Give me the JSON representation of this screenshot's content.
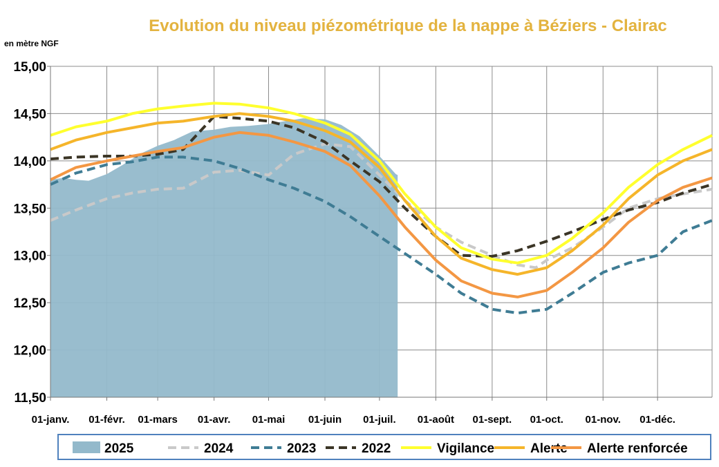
{
  "chart_data": {
    "type": "line",
    "title": "Evolution du niveau piézométrique  de la nappe à Béziers  - Clairac",
    "ylabel": "en mètre NGF",
    "ylim": [
      11.5,
      15.0
    ],
    "yticks": [
      "11,50",
      "12,00",
      "12,50",
      "13,00",
      "13,50",
      "14,00",
      "14,50",
      "15,00"
    ],
    "x_range": [
      "01-janv.",
      "31-déc."
    ],
    "xticks": [
      "01-janv.",
      "01-févr.",
      "01-mars",
      "01-avr.",
      "01-mai",
      "01-juin",
      "01-juil.",
      "01-août",
      "01-sept.",
      "01-oct.",
      "01-nov.",
      "01-déc."
    ],
    "grid": "vertical and horizontal",
    "legend_position": "bottom",
    "series": [
      {
        "name": "2025",
        "style": "area",
        "color": "#93b9cb",
        "points": [
          [
            "01-janv.",
            13.8
          ],
          [
            "08-janv.",
            13.82
          ],
          [
            "15-janv.",
            13.8
          ],
          [
            "22-janv.",
            13.79
          ],
          [
            "01-févr.",
            13.86
          ],
          [
            "10-févr.",
            13.96
          ],
          [
            "20-févr.",
            14.08
          ],
          [
            "01-mars",
            14.16
          ],
          [
            "10-mars",
            14.22
          ],
          [
            "20-mars",
            14.31
          ],
          [
            "01-avr.",
            14.33
          ],
          [
            "10-avr.",
            14.36
          ],
          [
            "20-avr.",
            14.37
          ],
          [
            "01-mai",
            14.39
          ],
          [
            "10-mai",
            14.42
          ],
          [
            "20-mai",
            14.45
          ],
          [
            "01-juin",
            14.44
          ],
          [
            "10-juin",
            14.38
          ],
          [
            "20-juin",
            14.26
          ],
          [
            "01-juil.",
            14.05
          ],
          [
            "10-juil.",
            13.86
          ],
          [
            "11-juil.",
            13.85
          ]
        ]
      },
      {
        "name": "2024",
        "style": "dashed",
        "color": "#c9c9c9",
        "points": [
          [
            "01-janv.",
            13.37
          ],
          [
            "15-janv.",
            13.48
          ],
          [
            "01-févr.",
            13.6
          ],
          [
            "15-févr.",
            13.66
          ],
          [
            "01-mars",
            13.7
          ],
          [
            "15-mars",
            13.71
          ],
          [
            "01-avr.",
            13.88
          ],
          [
            "15-avr.",
            13.9
          ],
          [
            "01-mai",
            13.85
          ],
          [
            "15-mai",
            14.07
          ],
          [
            "01-juin",
            14.18
          ],
          [
            "15-juin",
            14.15
          ],
          [
            "01-juil.",
            13.85
          ],
          [
            "15-juil.",
            13.58
          ],
          [
            "01-août",
            13.3
          ],
          [
            "15-août",
            13.14
          ],
          [
            "01-sept.",
            13.0
          ],
          [
            "15-sept.",
            12.9
          ],
          [
            "25-sept.",
            12.87
          ],
          [
            "01-oct.",
            12.95
          ],
          [
            "15-oct.",
            13.08
          ],
          [
            "01-nov.",
            13.3
          ],
          [
            "15-nov.",
            13.5
          ],
          [
            "01-déc.",
            13.6
          ],
          [
            "15-déc.",
            13.65
          ],
          [
            "31-déc.",
            13.7
          ]
        ]
      },
      {
        "name": "2023",
        "style": "dashed",
        "color": "#3f7c94",
        "points": [
          [
            "01-janv.",
            13.75
          ],
          [
            "15-janv.",
            13.87
          ],
          [
            "01-févr.",
            13.96
          ],
          [
            "15-févr.",
            13.99
          ],
          [
            "01-mars",
            14.04
          ],
          [
            "15-mars",
            14.04
          ],
          [
            "01-avr.",
            14.0
          ],
          [
            "15-avr.",
            13.92
          ],
          [
            "01-mai",
            13.8
          ],
          [
            "15-mai",
            13.71
          ],
          [
            "01-juin",
            13.57
          ],
          [
            "15-juin",
            13.41
          ],
          [
            "01-juil.",
            13.2
          ],
          [
            "15-juil.",
            13.02
          ],
          [
            "01-août",
            12.8
          ],
          [
            "15-août",
            12.6
          ],
          [
            "01-sept.",
            12.43
          ],
          [
            "15-sept.",
            12.39
          ],
          [
            "01-oct.",
            12.43
          ],
          [
            "15-oct.",
            12.6
          ],
          [
            "01-nov.",
            12.82
          ],
          [
            "15-nov.",
            12.92
          ],
          [
            "01-déc.",
            13.0
          ],
          [
            "15-déc.",
            13.25
          ],
          [
            "31-déc.",
            13.37
          ]
        ]
      },
      {
        "name": "2022",
        "style": "dashed",
        "color": "#3b3526",
        "points": [
          [
            "01-janv.",
            14.02
          ],
          [
            "15-janv.",
            14.04
          ],
          [
            "01-févr.",
            14.05
          ],
          [
            "15-févr.",
            14.05
          ],
          [
            "01-mars",
            14.07
          ],
          [
            "15-mars",
            14.12
          ],
          [
            "01-avr.",
            14.47
          ],
          [
            "15-avr.",
            14.45
          ],
          [
            "01-mai",
            14.42
          ],
          [
            "15-mai",
            14.35
          ],
          [
            "01-juin",
            14.2
          ],
          [
            "15-juin",
            14.0
          ],
          [
            "01-juil.",
            13.78
          ],
          [
            "15-juil.",
            13.5
          ],
          [
            "01-août",
            13.2
          ],
          [
            "15-août",
            13.0
          ],
          [
            "01-sept.",
            12.99
          ],
          [
            "15-sept.",
            13.05
          ],
          [
            "01-oct.",
            13.15
          ],
          [
            "15-oct.",
            13.25
          ],
          [
            "01-nov.",
            13.38
          ],
          [
            "15-nov.",
            13.48
          ],
          [
            "01-déc.",
            13.56
          ],
          [
            "15-déc.",
            13.66
          ],
          [
            "31-déc.",
            13.75
          ]
        ]
      },
      {
        "name": "Vigilance",
        "style": "solid",
        "color": "#ffff2e",
        "points": [
          [
            "01-janv.",
            14.27
          ],
          [
            "15-janv.",
            14.36
          ],
          [
            "01-févr.",
            14.42
          ],
          [
            "15-févr.",
            14.5
          ],
          [
            "01-mars",
            14.55
          ],
          [
            "15-mars",
            14.58
          ],
          [
            "01-avr.",
            14.61
          ],
          [
            "15-avr.",
            14.6
          ],
          [
            "01-mai",
            14.56
          ],
          [
            "15-mai",
            14.5
          ],
          [
            "01-juin",
            14.4
          ],
          [
            "15-juin",
            14.28
          ],
          [
            "01-juil.",
            14.0
          ],
          [
            "15-juil.",
            13.65
          ],
          [
            "01-août",
            13.3
          ],
          [
            "15-août",
            13.08
          ],
          [
            "01-sept.",
            12.96
          ],
          [
            "15-sept.",
            12.92
          ],
          [
            "01-oct.",
            13.0
          ],
          [
            "15-oct.",
            13.18
          ],
          [
            "01-nov.",
            13.45
          ],
          [
            "15-nov.",
            13.72
          ],
          [
            "01-déc.",
            13.96
          ],
          [
            "15-déc.",
            14.12
          ],
          [
            "31-déc.",
            14.27
          ]
        ]
      },
      {
        "name": "Alerte",
        "style": "solid",
        "color": "#f5b52a",
        "points": [
          [
            "01-janv.",
            14.12
          ],
          [
            "15-janv.",
            14.22
          ],
          [
            "01-févr.",
            14.3
          ],
          [
            "15-févr.",
            14.35
          ],
          [
            "01-mars",
            14.4
          ],
          [
            "15-mars",
            14.42
          ],
          [
            "01-avr.",
            14.47
          ],
          [
            "15-avr.",
            14.5
          ],
          [
            "01-mai",
            14.47
          ],
          [
            "15-mai",
            14.42
          ],
          [
            "01-juin",
            14.32
          ],
          [
            "15-juin",
            14.2
          ],
          [
            "01-juil.",
            13.93
          ],
          [
            "15-juil.",
            13.58
          ],
          [
            "01-août",
            13.2
          ],
          [
            "15-août",
            12.97
          ],
          [
            "01-sept.",
            12.85
          ],
          [
            "15-sept.",
            12.8
          ],
          [
            "01-oct.",
            12.87
          ],
          [
            "15-oct.",
            13.05
          ],
          [
            "01-nov.",
            13.32
          ],
          [
            "15-nov.",
            13.6
          ],
          [
            "01-déc.",
            13.85
          ],
          [
            "15-déc.",
            14.0
          ],
          [
            "31-déc.",
            14.12
          ]
        ]
      },
      {
        "name": "Alerte renforcée",
        "style": "solid",
        "color": "#f39743",
        "points": [
          [
            "01-janv.",
            13.8
          ],
          [
            "15-janv.",
            13.93
          ],
          [
            "01-févr.",
            14.0
          ],
          [
            "15-févr.",
            14.05
          ],
          [
            "01-mars",
            14.1
          ],
          [
            "15-mars",
            14.14
          ],
          [
            "01-avr.",
            14.25
          ],
          [
            "15-avr.",
            14.3
          ],
          [
            "01-mai",
            14.27
          ],
          [
            "15-mai",
            14.2
          ],
          [
            "01-juin",
            14.1
          ],
          [
            "15-juin",
            13.95
          ],
          [
            "01-juil.",
            13.63
          ],
          [
            "15-juil.",
            13.3
          ],
          [
            "01-août",
            12.95
          ],
          [
            "15-août",
            12.73
          ],
          [
            "01-sept.",
            12.6
          ],
          [
            "15-sept.",
            12.56
          ],
          [
            "01-oct.",
            12.63
          ],
          [
            "15-oct.",
            12.82
          ],
          [
            "01-nov.",
            13.08
          ],
          [
            "15-nov.",
            13.35
          ],
          [
            "01-déc.",
            13.58
          ],
          [
            "15-déc.",
            13.72
          ],
          [
            "31-déc.",
            13.82
          ]
        ]
      }
    ]
  }
}
